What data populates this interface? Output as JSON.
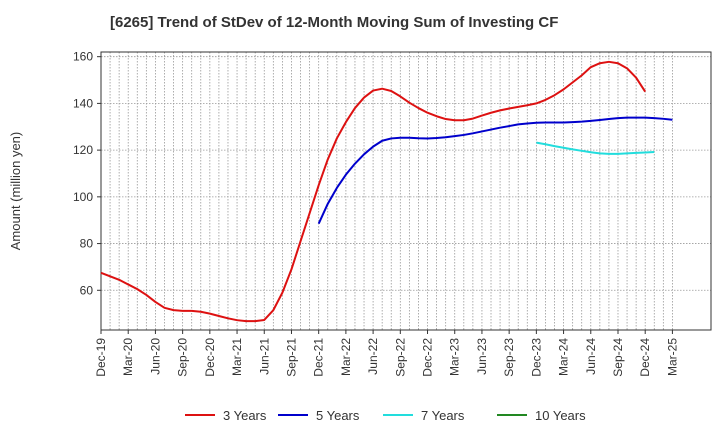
{
  "chart_data": {
    "type": "line",
    "title": "[6265]  Trend of StDev of 12-Month Moving Sum of Investing CF",
    "xlabel": "",
    "ylabel": "Amount (million yen)",
    "ylim": [
      43,
      162
    ],
    "yticks": [
      60,
      80,
      100,
      120,
      140,
      160
    ],
    "x_tick_labels": [
      "Dec-19",
      "Mar-20",
      "Jun-20",
      "Sep-20",
      "Dec-20",
      "Mar-21",
      "Jun-21",
      "Sep-21",
      "Dec-21",
      "Mar-22",
      "Jun-22",
      "Sep-22",
      "Dec-22",
      "Mar-23",
      "Jun-23",
      "Sep-23",
      "Dec-23",
      "Mar-24",
      "Jun-24",
      "Sep-24",
      "Dec-24",
      "Mar-25"
    ],
    "grid": true,
    "legend_position": "bottom",
    "colors": {
      "3y": "#dd1111",
      "5y": "#0000cc",
      "7y": "#22dddd",
      "10y": "#228822"
    },
    "series": [
      {
        "name": "3 Years",
        "color": "#dd1111",
        "start_index": 0,
        "values": [
          67.5,
          66,
          64.5,
          62.5,
          60.5,
          58,
          55,
          52.5,
          51.5,
          51.2,
          51.2,
          50.8,
          50,
          49,
          48,
          47.2,
          46.8,
          46.8,
          47.3,
          51.5,
          59,
          69,
          81,
          93,
          105,
          116,
          125,
          132,
          138,
          142.5,
          145.5,
          146.3,
          145.3,
          143,
          140.3,
          138,
          136,
          134.5,
          133.3,
          132.8,
          132.8,
          133.5,
          134.8,
          136,
          137,
          137.8,
          138.5,
          139.2,
          140,
          141.5,
          143.5,
          146,
          149,
          152,
          155.5,
          157.2,
          157.8,
          157.2,
          155,
          151,
          145
        ]
      },
      {
        "name": "5 Years",
        "color": "#0000cc",
        "start_index": 24,
        "values": [
          88.5,
          97,
          103.8,
          109.5,
          114.2,
          118.2,
          121.5,
          124,
          125,
          125.3,
          125.3,
          125.1,
          125,
          125.2,
          125.5,
          126,
          126.5,
          127.2,
          128,
          128.8,
          129.6,
          130.3,
          131,
          131.4,
          131.7,
          131.8,
          131.8,
          131.8,
          132,
          132.2,
          132.5,
          132.9,
          133.3,
          133.7,
          133.9,
          133.9,
          133.9,
          133.7,
          133.4,
          133
        ]
      },
      {
        "name": "7 Years",
        "color": "#22dddd",
        "start_index": 48,
        "values": [
          123.2,
          122.5,
          121.7,
          121,
          120.3,
          119.7,
          119.1,
          118.6,
          118.4,
          118.4,
          118.6,
          118.8,
          119,
          119.2
        ]
      },
      {
        "name": "10 Years",
        "color": "#228822",
        "start_index": 0,
        "values": []
      }
    ]
  }
}
